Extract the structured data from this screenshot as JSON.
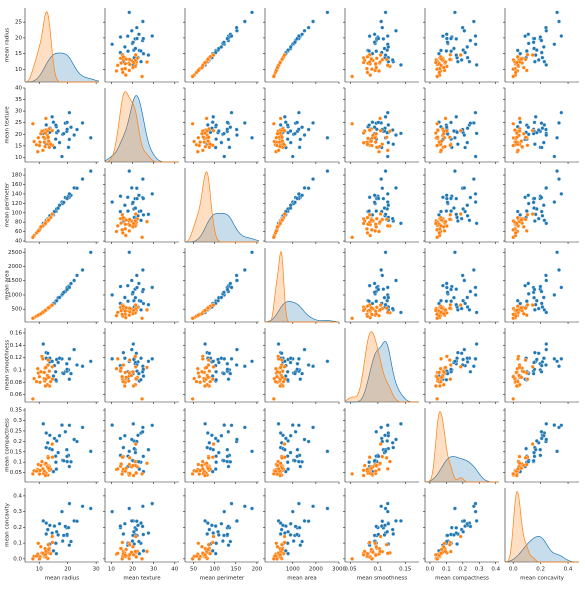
{
  "chart_data": {
    "type": "pairplot",
    "variables": [
      {
        "name": "mean radius",
        "xlim": [
          5,
          31
        ],
        "xticks": [
          10,
          20,
          30
        ],
        "ylim": [
          6,
          29.5
        ],
        "yticks": [
          10,
          15,
          20,
          25
        ]
      },
      {
        "name": "mean texture",
        "xlim": [
          7,
          42
        ],
        "xticks": [
          10,
          20,
          30,
          40
        ],
        "ylim": [
          8,
          40
        ],
        "yticks": [
          10,
          15,
          20,
          25,
          30,
          35,
          40
        ]
      },
      {
        "name": "mean perimeter",
        "xlim": [
          30,
          205
        ],
        "xticks": [
          50,
          100,
          150,
          200
        ],
        "ylim": [
          38,
          195
        ],
        "yticks": [
          40,
          60,
          80,
          100,
          120,
          140,
          160,
          180
        ]
      },
      {
        "name": "mean area",
        "xlim": [
          -200,
          3000
        ],
        "xticks": [
          1000,
          2000,
          3000
        ],
        "ylim": [
          50,
          2650
        ],
        "yticks": [
          500,
          1000,
          1500,
          2000,
          2500
        ]
      },
      {
        "name": "mean smoothness",
        "xlim": [
          0.04,
          0.175
        ],
        "xticks": [
          0.05,
          0.1,
          0.15
        ],
        "ylim": [
          0.048,
          0.168
        ],
        "yticks": [
          0.06,
          0.08,
          0.1,
          0.12,
          0.14,
          0.16
        ]
      },
      {
        "name": "mean compactness",
        "xlim": [
          -0.03,
          0.42
        ],
        "xticks": [
          {
            "value": 0,
            "label": "0.0"
          },
          0.1,
          0.2,
          0.3,
          0.4
        ],
        "ylim": [
          0.005,
          0.36
        ],
        "yticks": [
          0.05,
          0.1,
          0.15,
          0.2,
          0.25,
          0.3,
          0.35
        ]
      },
      {
        "name": "mean concavity",
        "xlim": [
          -0.06,
          0.48
        ],
        "xticks": [
          {
            "value": 0,
            "label": "0.0"
          },
          0.2,
          0.4
        ],
        "ylim": [
          -0.02,
          0.45
        ],
        "yticks": [
          {
            "value": 0,
            "label": "0.0"
          },
          0.1,
          0.2,
          0.3,
          0.4
        ]
      }
    ],
    "series": [
      {
        "color": "#1f77b4",
        "points": [
          [
            17.99,
            10.38,
            122.8,
            1001,
            0.118,
            0.278,
            0.3
          ],
          [
            20.57,
            17.77,
            132.9,
            1326,
            0.085,
            0.079,
            0.087
          ],
          [
            19.69,
            21.25,
            130.0,
            1203,
            0.11,
            0.16,
            0.197
          ],
          [
            11.42,
            20.38,
            77.58,
            386,
            0.142,
            0.284,
            0.241
          ],
          [
            20.29,
            14.34,
            135.1,
            1297,
            0.1,
            0.133,
            0.198
          ],
          [
            12.45,
            15.7,
            82.57,
            477,
            0.128,
            0.17,
            0.158
          ],
          [
            18.25,
            19.98,
            119.6,
            1040,
            0.095,
            0.109,
            0.113
          ],
          [
            13.71,
            20.83,
            90.2,
            578,
            0.119,
            0.165,
            0.094
          ],
          [
            13.0,
            21.82,
            87.5,
            520,
            0.127,
            0.193,
            0.186
          ],
          [
            12.46,
            24.04,
            83.97,
            476,
            0.119,
            0.24,
            0.227
          ],
          [
            16.02,
            23.24,
            102.7,
            798,
            0.082,
            0.067,
            0.033
          ],
          [
            15.78,
            17.89,
            103.6,
            781,
            0.097,
            0.129,
            0.1
          ],
          [
            19.17,
            24.8,
            132.4,
            1123,
            0.097,
            0.246,
            0.206
          ],
          [
            15.85,
            23.95,
            103.7,
            782,
            0.084,
            0.1,
            0.099
          ],
          [
            13.73,
            22.61,
            93.6,
            578,
            0.113,
            0.229,
            0.213
          ],
          [
            14.54,
            27.54,
            96.73,
            658,
            0.114,
            0.16,
            0.164
          ],
          [
            16.13,
            20.68,
            108.1,
            798,
            0.117,
            0.202,
            0.172
          ],
          [
            19.81,
            22.15,
            130.0,
            1260,
            0.098,
            0.103,
            0.148
          ],
          [
            15.34,
            14.26,
            102.5,
            704,
            0.107,
            0.214,
            0.208
          ],
          [
            21.16,
            23.04,
            137.2,
            1404,
            0.094,
            0.102,
            0.11
          ],
          [
            16.65,
            21.38,
            110.0,
            904,
            0.112,
            0.146,
            0.152
          ],
          [
            17.14,
            16.4,
            116.0,
            912,
            0.119,
            0.227,
            0.223
          ],
          [
            25.22,
            24.91,
            171.5,
            1878,
            0.106,
            0.267,
            0.334
          ],
          [
            28.11,
            18.47,
            188.5,
            2499,
            0.114,
            0.152,
            0.32
          ],
          [
            23.27,
            22.04,
            152.1,
            1686,
            0.108,
            0.199,
            0.239
          ],
          [
            18.61,
            20.25,
            122.1,
            1094,
            0.094,
            0.107,
            0.149
          ],
          [
            22.27,
            19.67,
            152.8,
            1509,
            0.133,
            0.209,
            0.241
          ],
          [
            19.79,
            25.12,
            130.4,
            1192,
            0.101,
            0.128,
            0.155
          ],
          [
            20.6,
            29.33,
            140.1,
            1265,
            0.118,
            0.277,
            0.351
          ],
          [
            14.99,
            25.2,
            95.54,
            698,
            0.09,
            0.055,
            0.051
          ]
        ]
      },
      {
        "color": "#ff7f0e",
        "points": [
          [
            13.54,
            14.36,
            87.46,
            566,
            0.098,
            0.081,
            0.067
          ],
          [
            13.08,
            15.71,
            85.63,
            520,
            0.108,
            0.127,
            0.046
          ],
          [
            9.5,
            12.44,
            60.34,
            274,
            0.102,
            0.065,
            0.03
          ],
          [
            13.03,
            18.42,
            82.61,
            524,
            0.09,
            0.038,
            0.002
          ],
          [
            8.2,
            16.84,
            51.71,
            202,
            0.086,
            0.059,
            0.016
          ],
          [
            12.05,
            14.63,
            78.04,
            449,
            0.103,
            0.091,
            0.065
          ],
          [
            13.49,
            22.3,
            86.91,
            561,
            0.088,
            0.078,
            0.048
          ],
          [
            11.76,
            21.6,
            74.72,
            427,
            0.086,
            0.05,
            0.015
          ],
          [
            13.64,
            16.34,
            87.21,
            572,
            0.074,
            0.061,
            0.036
          ],
          [
            11.94,
            18.24,
            75.71,
            437,
            0.082,
            0.047,
            0.02
          ],
          [
            10.95,
            21.35,
            71.9,
            371,
            0.122,
            0.103,
            0.038
          ],
          [
            12.36,
            21.8,
            79.78,
            467,
            0.085,
            0.048,
            0.012
          ],
          [
            14.64,
            15.24,
            95.77,
            652,
            0.085,
            0.124,
            0.104
          ],
          [
            11.52,
            18.75,
            73.34,
            409,
            0.096,
            0.046,
            0.028
          ],
          [
            10.26,
            16.58,
            65.85,
            321,
            0.08,
            0.06,
            0.014
          ],
          [
            12.85,
            21.37,
            82.63,
            514,
            0.076,
            0.084,
            0.047
          ],
          [
            9.04,
            15.44,
            57.26,
            255,
            0.081,
            0.057,
            0.018
          ],
          [
            14.02,
            15.66,
            89.59,
            606,
            0.081,
            0.066,
            0.033
          ],
          [
            12.87,
            19.54,
            82.67,
            509,
            0.091,
            0.078,
            0.042
          ],
          [
            10.08,
            15.11,
            63.76,
            318,
            0.089,
            0.043,
            0.0
          ],
          [
            11.8,
            16.58,
            75.49,
            432,
            0.096,
            0.057,
            0.023
          ],
          [
            9.67,
            18.49,
            61.49,
            290,
            0.095,
            0.089,
            0.099
          ],
          [
            12.34,
            26.86,
            81.15,
            477,
            0.104,
            0.095,
            0.047
          ],
          [
            14.58,
            21.53,
            97.41,
            645,
            0.105,
            0.187,
            0.142
          ],
          [
            7.76,
            24.54,
            47.92,
            181,
            0.053,
            0.044,
            0.0
          ],
          [
            11.29,
            13.04,
            72.23,
            388,
            0.118,
            0.068,
            0.035
          ],
          [
            13.17,
            18.66,
            85.98,
            534,
            0.116,
            0.121,
            0.09
          ],
          [
            12.18,
            20.52,
            77.22,
            458,
            0.074,
            0.036,
            0.026
          ],
          [
            10.57,
            20.22,
            70.15,
            338,
            0.097,
            0.084,
            0.077
          ],
          [
            13.27,
            17.02,
            84.55,
            547,
            0.088,
            0.071,
            0.06
          ]
        ]
      }
    ]
  }
}
